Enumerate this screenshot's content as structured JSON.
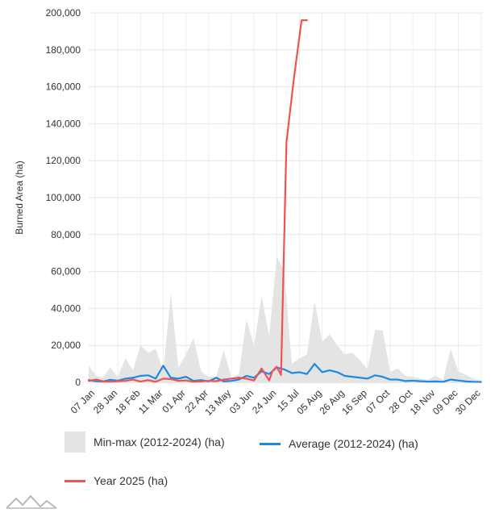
{
  "chart_data": {
    "type": "line",
    "ylabel": "Burned Area (ha)",
    "xlabel": "",
    "ylim": [
      0,
      200000
    ],
    "yticks": [
      "0",
      "20,000",
      "40,000",
      "60,000",
      "80,000",
      "100,000",
      "120,000",
      "140,000",
      "160,000",
      "180,000",
      "200,000"
    ],
    "ytick_values": [
      0,
      20000,
      40000,
      60000,
      80000,
      100000,
      120000,
      140000,
      160000,
      180000,
      200000
    ],
    "xlim_days": [
      1,
      365
    ],
    "xticks": [
      "07 Jan",
      "28 Jan",
      "18 Feb",
      "11 Mar",
      "01 Apr",
      "22 Apr",
      "13 May",
      "03 Jun",
      "24 Jun",
      "15 Jul",
      "05 Aug",
      "26 Aug",
      "16 Sep",
      "07 Oct",
      "28 Oct",
      "18 Nov",
      "09 Dec",
      "30 Dec"
    ],
    "xtick_days": [
      7,
      28,
      49,
      70,
      91,
      112,
      133,
      154,
      175,
      196,
      217,
      238,
      259,
      280,
      301,
      322,
      343,
      364
    ],
    "grid": true,
    "legend_position": "bottom",
    "series": [
      {
        "name": "Min-max (2012-2024) (ha)",
        "kind": "range",
        "color": "#e4e4e4",
        "x_days": [
          1,
          8,
          14,
          21,
          28,
          35,
          42,
          49,
          56,
          63,
          70,
          77,
          84,
          91,
          98,
          105,
          112,
          119,
          126,
          133,
          140,
          147,
          154,
          161,
          168,
          175,
          182,
          189,
          196,
          203,
          210,
          217,
          224,
          231,
          238,
          245,
          252,
          259,
          266,
          273,
          280,
          287,
          294,
          301,
          308,
          315,
          322,
          329,
          336,
          343,
          350,
          357,
          364
        ],
        "low": [
          0,
          0,
          0,
          0,
          0,
          0,
          0,
          0,
          0,
          0,
          0,
          0,
          0,
          0,
          0,
          0,
          0,
          0,
          0,
          0,
          0,
          0,
          0,
          0,
          0,
          0,
          0,
          0,
          0,
          0,
          0,
          0,
          0,
          0,
          0,
          0,
          0,
          0,
          0,
          0,
          0,
          0,
          0,
          0,
          0,
          0,
          0,
          0,
          0,
          0,
          0,
          0,
          0
        ],
        "high": [
          9000,
          3500,
          2500,
          8000,
          3000,
          13000,
          6500,
          20000,
          16000,
          18000,
          6000,
          48000,
          8000,
          15000,
          24000,
          6000,
          3000,
          3000,
          17500,
          2500,
          4500,
          34000,
          20000,
          46500,
          25000,
          68000,
          60000,
          10000,
          13000,
          15000,
          44000,
          22000,
          26000,
          20000,
          15000,
          16000,
          12000,
          7000,
          28500,
          28000,
          5500,
          7500,
          3500,
          3000,
          2000,
          1500,
          3500,
          1500,
          18000,
          6000,
          4000,
          2000,
          1000
        ]
      },
      {
        "name": "Average (2012-2024) (ha)",
        "kind": "line",
        "color": "#1e88e5",
        "x_days": [
          1,
          8,
          14,
          21,
          28,
          35,
          42,
          49,
          56,
          63,
          70,
          77,
          84,
          91,
          98,
          105,
          112,
          119,
          126,
          133,
          140,
          147,
          154,
          161,
          168,
          175,
          182,
          189,
          196,
          203,
          210,
          217,
          224,
          231,
          238,
          245,
          252,
          259,
          266,
          273,
          280,
          287,
          294,
          301,
          308,
          315,
          322,
          329,
          336,
          343,
          350,
          357,
          364
        ],
        "values": [
          1200,
          600,
          400,
          1400,
          900,
          2000,
          2500,
          3500,
          3800,
          2000,
          9000,
          2500,
          2000,
          3000,
          800,
          1200,
          500,
          2500,
          500,
          800,
          1500,
          3500,
          2500,
          6000,
          4500,
          8000,
          7000,
          5000,
          5500,
          4500,
          10000,
          5500,
          6500,
          5500,
          3500,
          3000,
          2500,
          2000,
          3800,
          3000,
          1500,
          1500,
          700,
          900,
          600,
          400,
          500,
          300,
          1500,
          1000,
          500,
          300,
          200
        ]
      },
      {
        "name": "Year 2025 (ha)",
        "kind": "line",
        "color": "#ef5350",
        "x_days": [
          1,
          8,
          14,
          21,
          28,
          35,
          42,
          49,
          56,
          63,
          70,
          77,
          84,
          91,
          98,
          105,
          112,
          119,
          126,
          133,
          140,
          147,
          154,
          161,
          168,
          171,
          175,
          179,
          184,
          191,
          198,
          201,
          203
        ],
        "values": [
          800,
          1500,
          600,
          300,
          600,
          800,
          1500,
          400,
          1200,
          300,
          2000,
          1800,
          800,
          1000,
          300,
          500,
          800,
          600,
          1500,
          2000,
          2500,
          2000,
          1000,
          7500,
          1000,
          6000,
          8500,
          4000,
          130000,
          165000,
          196000,
          196000,
          196000
        ]
      }
    ]
  },
  "legend": {
    "minmax_label": "Min-max (2012-2024) (ha)",
    "average_label": "Average (2012-2024) (ha)",
    "year_label": "Year 2025 (ha)",
    "minmax_color": "#e4e4e4",
    "average_color": "#1e88e5",
    "year_color": "#ef5350"
  },
  "icons": {
    "logo": "mountain-logo-icon"
  }
}
